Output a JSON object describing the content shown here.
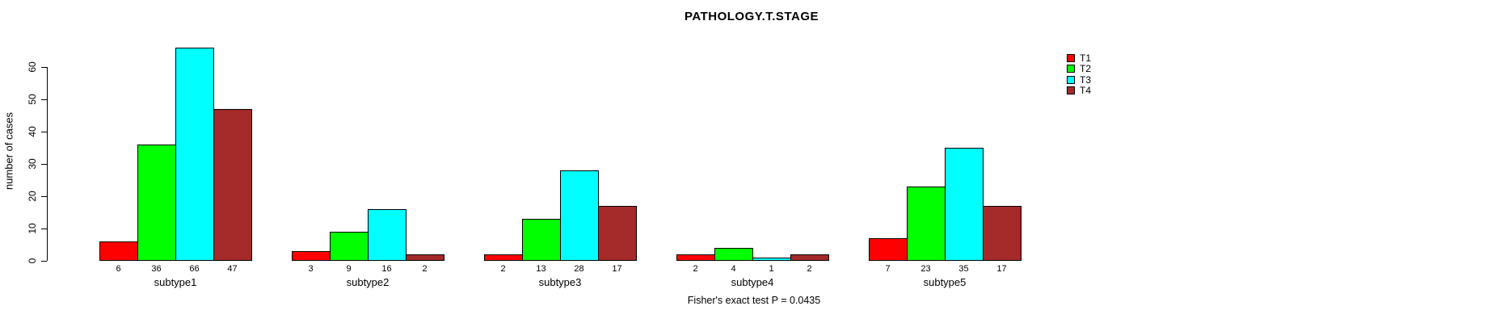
{
  "chart_data": {
    "type": "bar",
    "title": "PATHOLOGY.T.STAGE",
    "xlabel": "",
    "ylabel": "number of cases",
    "ylim": [
      0,
      66
    ],
    "yticks": [
      0,
      10,
      20,
      30,
      40,
      50,
      60
    ],
    "categories": [
      "subtype1",
      "subtype2",
      "subtype3",
      "subtype4",
      "subtype5"
    ],
    "series": [
      {
        "name": "T1",
        "color": "#FF0000",
        "values": [
          6,
          3,
          2,
          2,
          7
        ]
      },
      {
        "name": "T2",
        "color": "#00FF00",
        "values": [
          36,
          9,
          13,
          4,
          23
        ]
      },
      {
        "name": "T3",
        "color": "#00FFFF",
        "values": [
          66,
          16,
          28,
          1,
          35
        ]
      },
      {
        "name": "T4",
        "color": "#A52A2A",
        "values": [
          47,
          2,
          17,
          2,
          17
        ]
      }
    ],
    "bar_value_labels": true,
    "legend_position": "right",
    "grid": false,
    "annotation": "Fisher's exact test P = 0.0435"
  },
  "legend": {
    "items": [
      {
        "label": "T1",
        "color": "#FF0000"
      },
      {
        "label": "T2",
        "color": "#00FF00"
      },
      {
        "label": "T3",
        "color": "#00FFFF"
      },
      {
        "label": "T4",
        "color": "#A52A2A"
      }
    ]
  }
}
